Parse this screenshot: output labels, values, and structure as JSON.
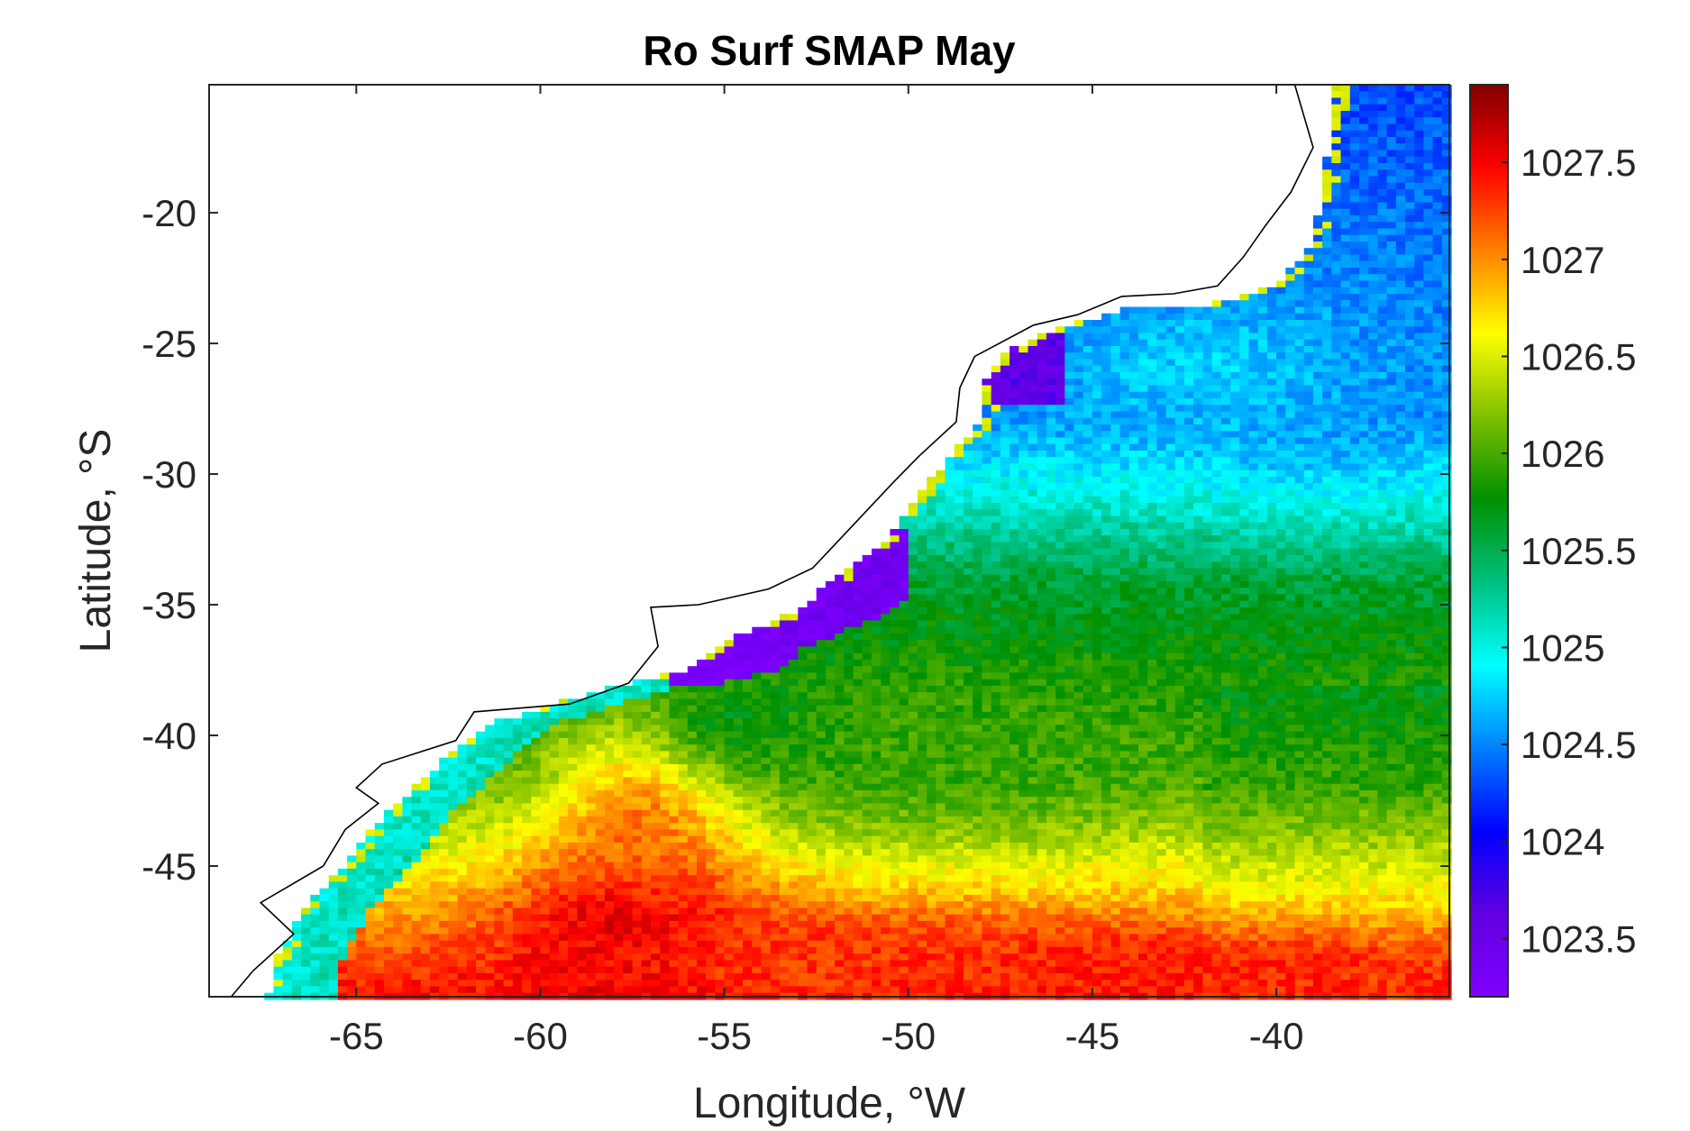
{
  "chart_data": {
    "type": "heatmap",
    "title": "Ro Surf SMAP May",
    "xlabel": "Longitude, °W",
    "ylabel": "Latitude, °S",
    "xlim": [
      -69,
      -35.3
    ],
    "ylim": [
      -50,
      -15.1
    ],
    "xticks": [
      -65,
      -60,
      -55,
      -50,
      -45,
      -40
    ],
    "xtick_labels": [
      "-65",
      "-60",
      "-55",
      "-50",
      "-45",
      "-40"
    ],
    "yticks": [
      -20,
      -25,
      -30,
      -35,
      -40,
      -45
    ],
    "ytick_labels": [
      "-20",
      "-25",
      "-30",
      "-35",
      "-40",
      "-45"
    ],
    "colorbar": {
      "limits": [
        1023.2,
        1027.9
      ],
      "ticks": [
        1027.5,
        1027,
        1026.5,
        1026,
        1025.5,
        1025,
        1024.5,
        1024,
        1023.5
      ],
      "tick_labels": [
        "1027.5",
        "1027",
        "1026.5",
        "1026",
        "1025.5",
        "1025",
        "1024.5",
        "1024",
        "1023.5"
      ],
      "colormap": [
        "#800000",
        "#ff0000",
        "#ff8000",
        "#ffff00",
        "#80c000",
        "#009000",
        "#00c080",
        "#00ffff",
        "#0080ff",
        "#0000ff",
        "#6000e0",
        "#8000ff"
      ]
    },
    "coastline_lonlat": [
      [
        -39.5,
        -15.1
      ],
      [
        -39.0,
        -17.5
      ],
      [
        -39.6,
        -19.2
      ],
      [
        -40.3,
        -20.5
      ],
      [
        -40.9,
        -21.7
      ],
      [
        -41.6,
        -22.8
      ],
      [
        -42.8,
        -23.1
      ],
      [
        -44.2,
        -23.2
      ],
      [
        -45.4,
        -23.9
      ],
      [
        -46.6,
        -24.3
      ],
      [
        -48.2,
        -25.5
      ],
      [
        -48.6,
        -26.7
      ],
      [
        -48.7,
        -28.0
      ],
      [
        -49.7,
        -29.3
      ],
      [
        -50.4,
        -30.3
      ],
      [
        -51.8,
        -32.4
      ],
      [
        -52.6,
        -33.6
      ],
      [
        -53.8,
        -34.4
      ],
      [
        -55.7,
        -35.0
      ],
      [
        -57.0,
        -35.1
      ],
      [
        -56.8,
        -36.6
      ],
      [
        -57.6,
        -38.0
      ],
      [
        -59.2,
        -38.8
      ],
      [
        -61.8,
        -39.1
      ],
      [
        -62.3,
        -40.2
      ],
      [
        -64.3,
        -41.1
      ],
      [
        -65.0,
        -42.0
      ],
      [
        -64.4,
        -42.6
      ],
      [
        -65.3,
        -43.6
      ],
      [
        -65.9,
        -45.0
      ],
      [
        -67.6,
        -46.4
      ],
      [
        -66.7,
        -47.6
      ],
      [
        -67.8,
        -49.0
      ],
      [
        -68.4,
        -50.0
      ]
    ],
    "shelf_boundary_lonlat": [
      [
        -38.4,
        -15.1
      ],
      [
        -38.6,
        -17.5
      ],
      [
        -38.8,
        -19.8
      ],
      [
        -39.2,
        -21.6
      ],
      [
        -40.2,
        -22.9
      ],
      [
        -41.8,
        -23.5
      ],
      [
        -43.8,
        -23.6
      ],
      [
        -46.0,
        -24.4
      ],
      [
        -47.2,
        -25.2
      ],
      [
        -47.9,
        -26.3
      ],
      [
        -48.0,
        -27.9
      ],
      [
        -49.0,
        -29.5
      ],
      [
        -49.9,
        -31.2
      ],
      [
        -50.6,
        -32.6
      ],
      [
        -51.8,
        -33.8
      ],
      [
        -53.0,
        -35.2
      ],
      [
        -54.8,
        -36.3
      ],
      [
        -56.1,
        -37.5
      ],
      [
        -58.2,
        -38.2
      ],
      [
        -61.5,
        -39.6
      ],
      [
        -62.9,
        -41.3
      ],
      [
        -64.3,
        -43.1
      ],
      [
        -65.2,
        -44.8
      ],
      [
        -66.5,
        -46.8
      ],
      [
        -67.2,
        -48.6
      ],
      [
        -67.4,
        -50.0
      ]
    ],
    "field_features": [
      {
        "lon": -57.5,
        "lat": -47.5,
        "value": 1027.75,
        "sigma_lon": 2.3,
        "sigma_lat": 2.2
      },
      {
        "lon": -57.0,
        "lat": -43.0,
        "value": 1027.2,
        "sigma_lon": 1.8,
        "sigma_lat": 2.5
      },
      {
        "lon": -45.0,
        "lat": -48.8,
        "value": 1027.4,
        "sigma_lon": 9.0,
        "sigma_lat": 1.1
      },
      {
        "lon": -52.0,
        "lat": -48.5,
        "value": 1027.3,
        "sigma_lon": 4.0,
        "sigma_lat": 1.2
      },
      {
        "lon": -49.0,
        "lat": -40.8,
        "value": 1025.95,
        "sigma_lon": 4.5,
        "sigma_lat": 2.0
      },
      {
        "lon": -54.5,
        "lat": -39.3,
        "value": 1025.75,
        "sigma_lon": 1.6,
        "sigma_lat": 1.4
      },
      {
        "lon": -38.5,
        "lat": -24.5,
        "value": 1024.5,
        "sigma_lon": 2.5,
        "sigma_lat": 3.5
      },
      {
        "lon": -42.0,
        "lat": -26.0,
        "value": 1024.75,
        "sigma_lon": 3.0,
        "sigma_lat": 2.0
      }
    ],
    "shelf_patches": [
      {
        "lon_range": [
          -56.5,
          -53.0
        ],
        "lat_range": [
          -38.0,
          -35.2
        ],
        "value": 1023.3
      },
      {
        "lon_range": [
          -53.5,
          -50.0
        ],
        "lat_range": [
          -36.5,
          -32.0
        ],
        "value": 1023.4
      },
      {
        "lon_range": [
          -49.0,
          -45.8
        ],
        "lat_range": [
          -27.4,
          -24.4
        ],
        "value": 1023.6
      }
    ]
  }
}
